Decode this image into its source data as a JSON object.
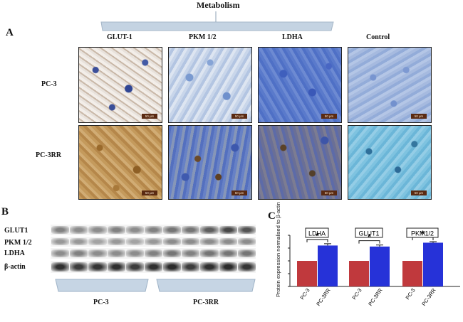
{
  "header": {
    "title": "Metabolism"
  },
  "panel_a": {
    "label": "A",
    "columns": [
      "GLUT-1",
      "PKM 1/2",
      "LDHA",
      "Control"
    ],
    "rows": [
      "PC-3",
      "PC-3RR"
    ],
    "scale_bar": "50 µm"
  },
  "panel_b": {
    "label": "B",
    "bands": [
      "GLUT1",
      "PKM 1/2",
      "LDHA",
      "β-actin"
    ],
    "groups": [
      "PC-3",
      "PC-3RR"
    ]
  },
  "panel_c": {
    "label": "C",
    "colors": {
      "pc3": "#c0393d",
      "pc3rr": "#2632d8"
    }
  },
  "chart_data": {
    "type": "bar",
    "ylabel": "Protein expression normalised to β-actin",
    "ylim": [
      0,
      200
    ],
    "yticks": [
      0,
      50,
      100,
      150,
      200
    ],
    "groups": [
      {
        "name": "LDHA",
        "categories": [
          "PC-3",
          "PC-3RR"
        ],
        "values": [
          100,
          160
        ],
        "errors": [
          0,
          7
        ],
        "significance": "*"
      },
      {
        "name": "GLUT1",
        "categories": [
          "PC-3",
          "PC-3RR"
        ],
        "values": [
          100,
          156
        ],
        "errors": [
          0,
          6
        ],
        "significance": "*"
      },
      {
        "name": "PKM1/2",
        "categories": [
          "PC-3",
          "PC-3RR"
        ],
        "values": [
          100,
          171
        ],
        "errors": [
          0,
          4
        ],
        "significance": "*"
      }
    ]
  }
}
